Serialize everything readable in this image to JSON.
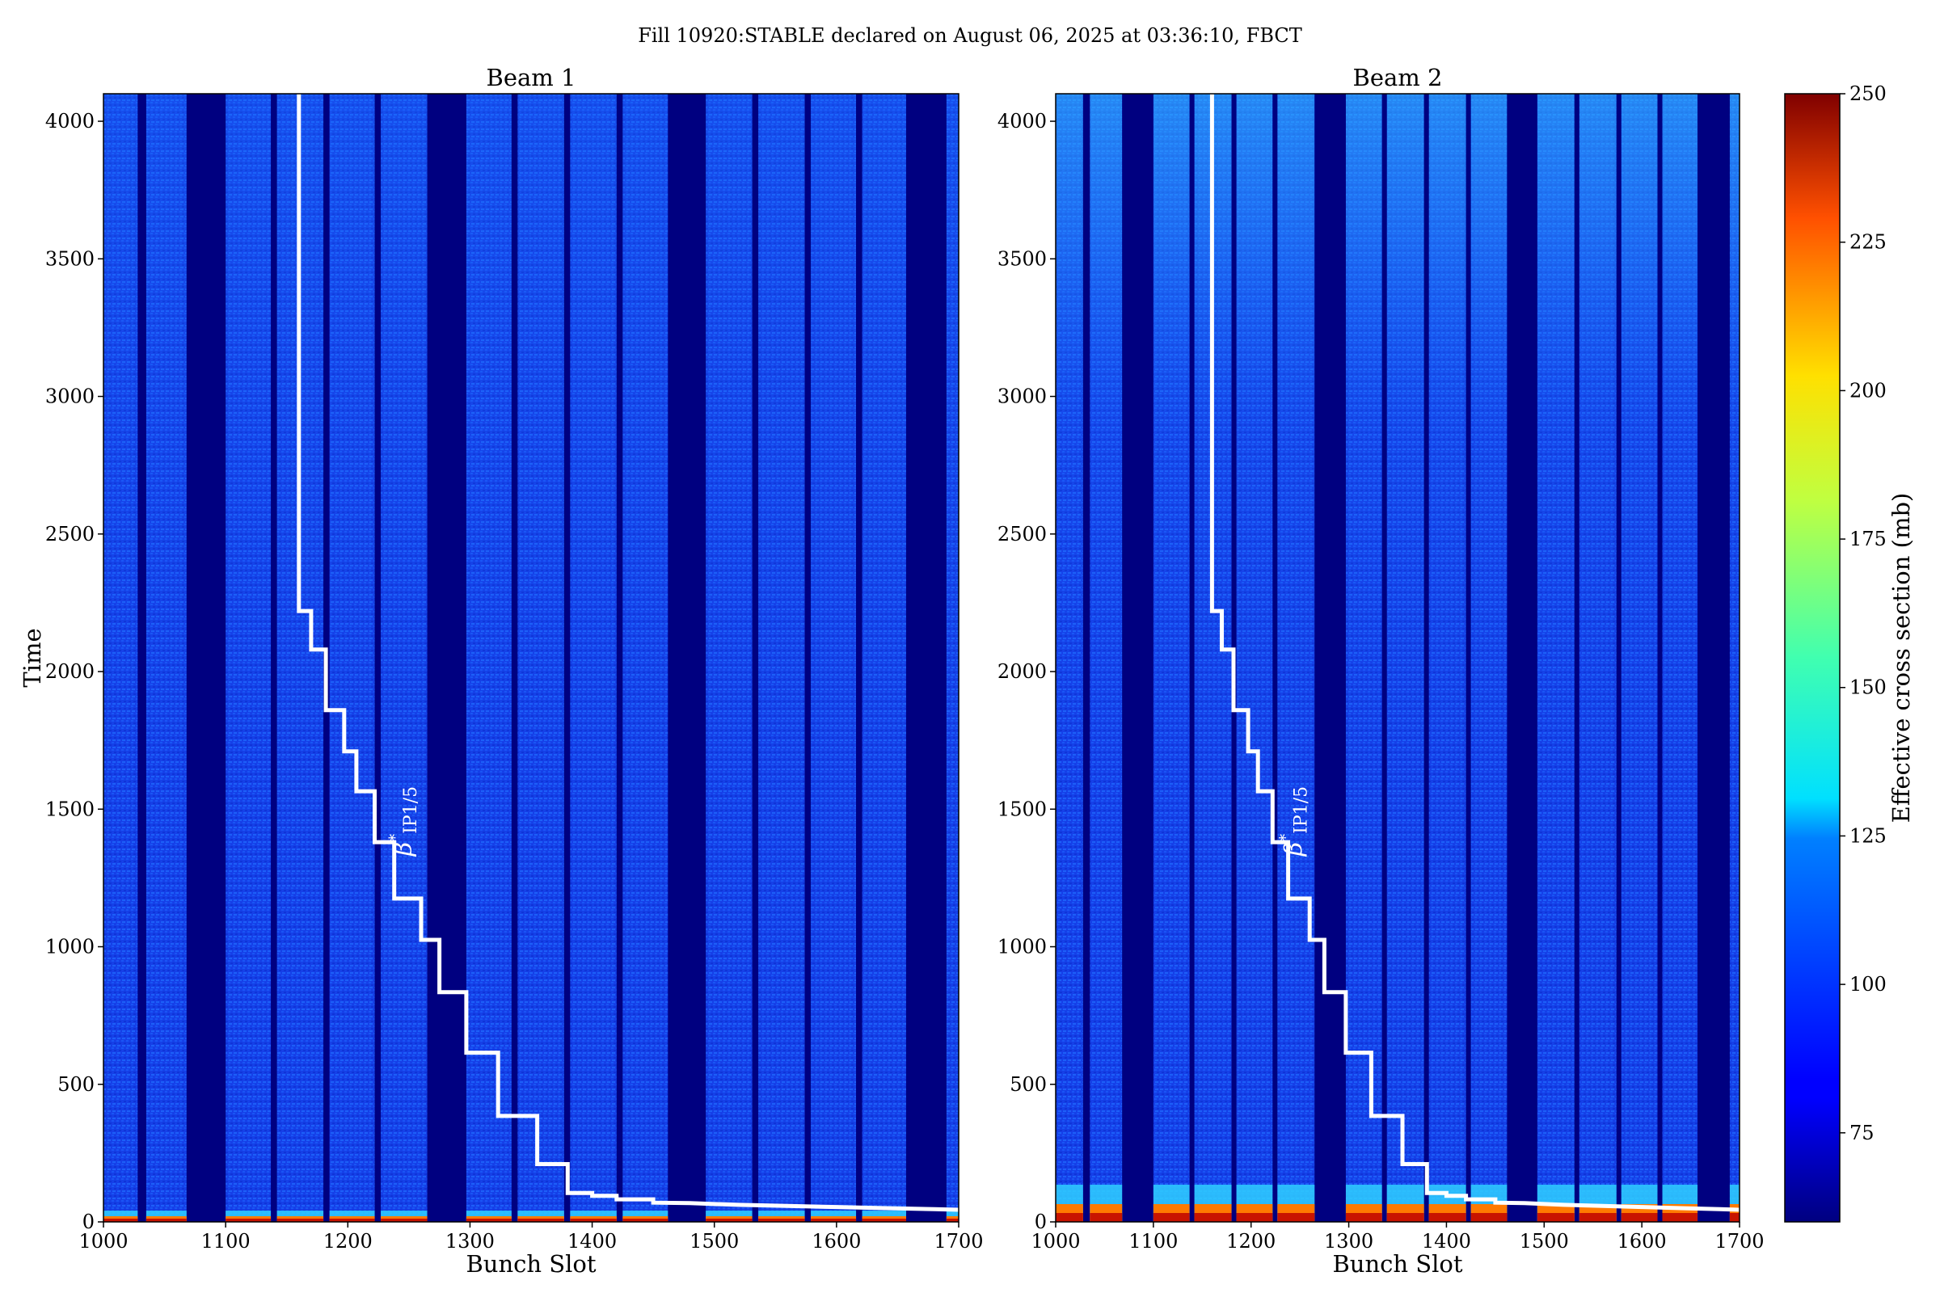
{
  "figure": {
    "suptitle": "Fill 10920:STABLE declared on August 06, 2025 at 03:36:10, FBCT"
  },
  "chart_data": {
    "type": "heatmap",
    "colormap": "jet",
    "panels": [
      {
        "title": "Beam 1",
        "xlabel": "Bunch Slot",
        "ylabel": "Time"
      },
      {
        "title": "Beam 2",
        "xlabel": "Bunch Slot",
        "ylabel": ""
      }
    ],
    "xlim": [
      1000,
      1700
    ],
    "ylim": [
      0,
      4100
    ],
    "xticks": [
      1000,
      1100,
      1200,
      1300,
      1400,
      1500,
      1600,
      1700
    ],
    "yticks": [
      0,
      500,
      1000,
      1500,
      2000,
      2500,
      3000,
      3500,
      4000
    ],
    "colorbar": {
      "label": "Effective cross section (mb)",
      "range": [
        60,
        250
      ],
      "ticks": [
        75,
        100,
        125,
        150,
        175,
        200,
        225,
        250
      ]
    },
    "empty_slot_ranges": [
      [
        1028,
        1035
      ],
      [
        1068,
        1100
      ],
      [
        1137,
        1142
      ],
      [
        1180,
        1185
      ],
      [
        1222,
        1227
      ],
      [
        1265,
        1297
      ],
      [
        1334,
        1339
      ],
      [
        1377,
        1382
      ],
      [
        1420,
        1425
      ],
      [
        1462,
        1493
      ],
      [
        1531,
        1536
      ],
      [
        1574,
        1579
      ],
      [
        1616,
        1621
      ],
      [
        1657,
        1690
      ]
    ],
    "beta_star_curve": {
      "label": "β*IP1/5",
      "points": [
        [
          1160,
          4100
        ],
        [
          1160,
          2220
        ],
        [
          1170,
          2220
        ],
        [
          1170,
          2080
        ],
        [
          1182,
          2080
        ],
        [
          1182,
          1860
        ],
        [
          1197,
          1860
        ],
        [
          1197,
          1710
        ],
        [
          1207,
          1710
        ],
        [
          1207,
          1565
        ],
        [
          1222,
          1565
        ],
        [
          1222,
          1380
        ],
        [
          1238,
          1380
        ],
        [
          1238,
          1175
        ],
        [
          1260,
          1175
        ],
        [
          1260,
          1025
        ],
        [
          1275,
          1025
        ],
        [
          1275,
          835
        ],
        [
          1297,
          835
        ],
        [
          1297,
          615
        ],
        [
          1323,
          615
        ],
        [
          1323,
          385
        ],
        [
          1355,
          385
        ],
        [
          1355,
          210
        ],
        [
          1380,
          210
        ],
        [
          1380,
          105
        ],
        [
          1400,
          105
        ],
        [
          1400,
          95
        ],
        [
          1420,
          95
        ],
        [
          1420,
          82
        ],
        [
          1450,
          82
        ],
        [
          1450,
          70
        ],
        [
          1480,
          68
        ],
        [
          1520,
          62
        ],
        [
          1560,
          58
        ],
        [
          1600,
          54
        ],
        [
          1640,
          50
        ],
        [
          1680,
          46
        ],
        [
          1700,
          44
        ]
      ]
    }
  }
}
